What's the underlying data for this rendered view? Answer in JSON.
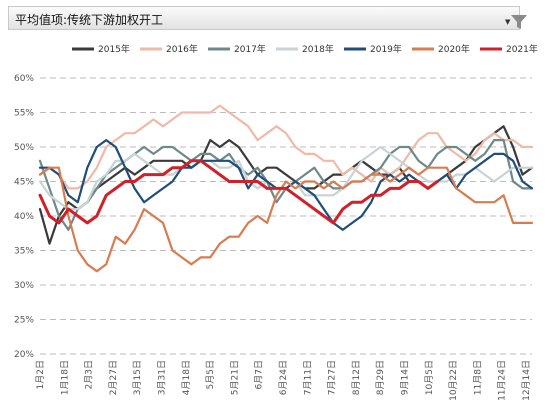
{
  "header": {
    "title": "平均值项:传统下游加权开工"
  },
  "chart_data": {
    "type": "line",
    "title": "",
    "xlabel": "",
    "ylabel": "",
    "ylim": [
      0.2,
      0.6
    ],
    "y_ticks": [
      "20%",
      "25%",
      "30%",
      "35%",
      "40%",
      "45%",
      "50%",
      "55%",
      "60%"
    ],
    "grid": "horizontal dashed",
    "legend_position": "top",
    "x_tick_labels": [
      "1月2日",
      "1月18日",
      "2月3日",
      "2月27日",
      "3月15日",
      "3月31日",
      "4月18日",
      "5月5日",
      "5月21日",
      "6月7日",
      "6月24日",
      "7月11日",
      "7月27日",
      "8月12日",
      "8月29日",
      "9月14日",
      "10月5日",
      "10月22日",
      "11月8日",
      "11月24日",
      "12月14日"
    ],
    "series": [
      {
        "name": "2015年",
        "color": "#3a3a3a",
        "values": [
          0.41,
          0.36,
          0.4,
          0.42,
          0.41,
          0.42,
          0.44,
          0.45,
          0.46,
          0.47,
          0.46,
          0.47,
          0.48,
          0.48,
          0.48,
          0.48,
          0.47,
          0.48,
          0.51,
          0.5,
          0.51,
          0.5,
          0.48,
          0.46,
          0.47,
          0.47,
          0.46,
          0.45,
          0.44,
          0.44,
          0.45,
          0.46,
          0.46,
          0.47,
          0.48,
          0.47,
          0.46,
          0.46,
          0.47,
          0.45,
          0.45,
          0.44,
          0.45,
          0.46,
          0.47,
          0.48,
          0.5,
          0.51,
          0.52,
          0.53,
          0.5,
          0.46,
          0.47
        ]
      },
      {
        "name": "2016年",
        "color": "#f0b9a8",
        "values": [
          0.46,
          0.47,
          0.46,
          0.44,
          0.44,
          0.45,
          0.47,
          0.5,
          0.51,
          0.52,
          0.52,
          0.53,
          0.54,
          0.53,
          0.54,
          0.55,
          0.55,
          0.55,
          0.55,
          0.56,
          0.55,
          0.54,
          0.53,
          0.51,
          0.52,
          0.53,
          0.52,
          0.5,
          0.49,
          0.49,
          0.48,
          0.48,
          0.46,
          0.47,
          0.46,
          0.45,
          0.47,
          0.46,
          0.47,
          0.49,
          0.51,
          0.52,
          0.52,
          0.5,
          0.49,
          0.48,
          0.49,
          0.51,
          0.52,
          0.51,
          0.51,
          0.5,
          0.5
        ]
      },
      {
        "name": "2017年",
        "color": "#6d8a88",
        "values": [
          0.48,
          0.44,
          0.4,
          0.38,
          0.41,
          0.42,
          0.44,
          0.46,
          0.47,
          0.48,
          0.49,
          0.5,
          0.49,
          0.5,
          0.5,
          0.49,
          0.48,
          0.49,
          0.49,
          0.48,
          0.49,
          0.47,
          0.46,
          0.47,
          0.45,
          0.42,
          0.44,
          0.45,
          0.46,
          0.47,
          0.45,
          0.44,
          0.44,
          0.45,
          0.45,
          0.46,
          0.47,
          0.49,
          0.5,
          0.5,
          0.48,
          0.47,
          0.49,
          0.5,
          0.5,
          0.49,
          0.48,
          0.49,
          0.51,
          0.51,
          0.45,
          0.44,
          0.44
        ]
      },
      {
        "name": "2018年",
        "color": "#c7d3d4",
        "values": [
          0.45,
          0.43,
          0.42,
          0.41,
          0.41,
          0.42,
          0.45,
          0.46,
          0.48,
          0.48,
          0.49,
          0.48,
          0.47,
          0.46,
          0.46,
          0.47,
          0.48,
          0.48,
          0.48,
          0.47,
          0.47,
          0.48,
          0.45,
          0.44,
          0.45,
          0.44,
          0.44,
          0.45,
          0.43,
          0.43,
          0.43,
          0.43,
          0.44,
          0.46,
          0.48,
          0.49,
          0.5,
          0.49,
          0.48,
          0.47,
          0.46,
          0.45,
          0.45,
          0.45,
          0.46,
          0.46,
          0.47,
          0.46,
          0.45,
          0.46,
          0.47,
          0.47,
          0.47
        ]
      },
      {
        "name": "2019年",
        "color": "#1f4e79",
        "values": [
          0.47,
          0.47,
          0.46,
          0.43,
          0.42,
          0.47,
          0.5,
          0.51,
          0.5,
          0.47,
          0.44,
          0.42,
          0.43,
          0.44,
          0.45,
          0.47,
          0.47,
          0.48,
          0.48,
          0.48,
          0.48,
          0.47,
          0.44,
          0.46,
          0.45,
          0.44,
          0.44,
          0.45,
          0.44,
          0.43,
          0.41,
          0.39,
          0.38,
          0.39,
          0.4,
          0.42,
          0.45,
          0.46,
          0.45,
          0.46,
          0.45,
          0.44,
          0.45,
          0.46,
          0.44,
          0.46,
          0.47,
          0.48,
          0.49,
          0.49,
          0.48,
          0.45,
          0.44
        ]
      },
      {
        "name": "2020年",
        "color": "#d97b50",
        "values": [
          0.46,
          0.47,
          0.47,
          0.4,
          0.35,
          0.33,
          0.32,
          0.33,
          0.37,
          0.36,
          0.38,
          0.41,
          0.4,
          0.39,
          0.35,
          0.34,
          0.33,
          0.34,
          0.34,
          0.36,
          0.37,
          0.37,
          0.39,
          0.4,
          0.39,
          0.43,
          0.45,
          0.44,
          0.45,
          0.45,
          0.44,
          0.45,
          0.44,
          0.45,
          0.45,
          0.46,
          0.46,
          0.45,
          0.46,
          0.47,
          0.46,
          0.47,
          0.47,
          0.47,
          0.44,
          0.43,
          0.42,
          0.42,
          0.42,
          0.43,
          0.39,
          0.39,
          0.39
        ]
      },
      {
        "name": "2021年",
        "color": "#d1202a",
        "values": [
          0.43,
          0.4,
          0.39,
          0.41,
          0.4,
          0.39,
          0.4,
          0.43,
          0.44,
          0.45,
          0.45,
          0.46,
          0.46,
          0.46,
          0.47,
          0.47,
          0.48,
          0.48,
          0.47,
          0.46,
          0.45,
          0.45,
          0.45,
          0.45,
          0.44,
          0.44,
          0.44,
          0.43,
          0.42,
          0.41,
          0.4,
          0.39,
          0.41,
          0.42,
          0.42,
          0.43,
          0.43,
          0.44,
          0.44,
          0.45,
          0.45,
          0.44,
          0.45
        ]
      }
    ]
  }
}
